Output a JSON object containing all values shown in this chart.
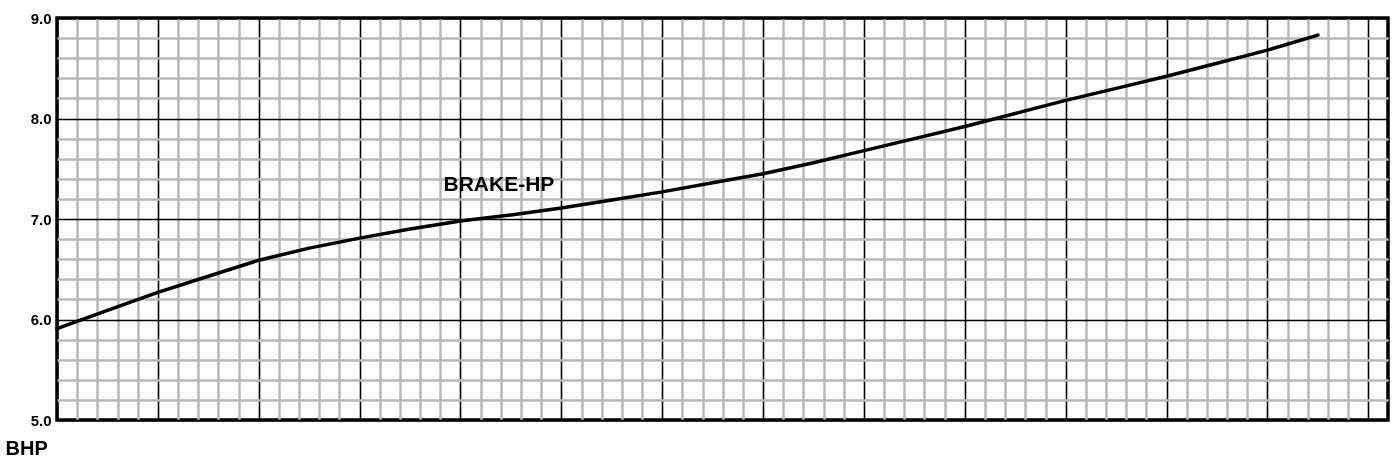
{
  "chart_data": {
    "type": "line",
    "ylabel": "BHP",
    "categories": [
      null,
      null,
      null,
      null,
      null,
      null,
      null,
      null,
      null,
      null,
      null,
      null,
      null,
      null,
      null,
      null,
      null,
      null,
      null,
      null,
      null,
      null,
      null,
      null,
      null,
      null
    ],
    "series": [
      {
        "name": "BRAKE-HP",
        "color": "#000000",
        "values": [
          5.91,
          6.09,
          6.27,
          6.43,
          6.59,
          6.71,
          6.81,
          6.9,
          6.98,
          7.04,
          7.11,
          7.19,
          7.27,
          7.36,
          7.45,
          7.56,
          7.68,
          7.8,
          7.92,
          8.05,
          8.18,
          8.3,
          8.42,
          8.55,
          8.68,
          8.83
        ]
      }
    ],
    "ylim": [
      5,
      9
    ],
    "yticks": [
      {
        "value": 5,
        "label": "5.0"
      },
      {
        "value": 6,
        "label": "6.0"
      },
      {
        "value": 7,
        "label": "7.0"
      },
      {
        "value": 8,
        "label": "8.0"
      },
      {
        "value": 9,
        "label": "9.0"
      }
    ],
    "grid": true,
    "tick_labels": "y"
  }
}
